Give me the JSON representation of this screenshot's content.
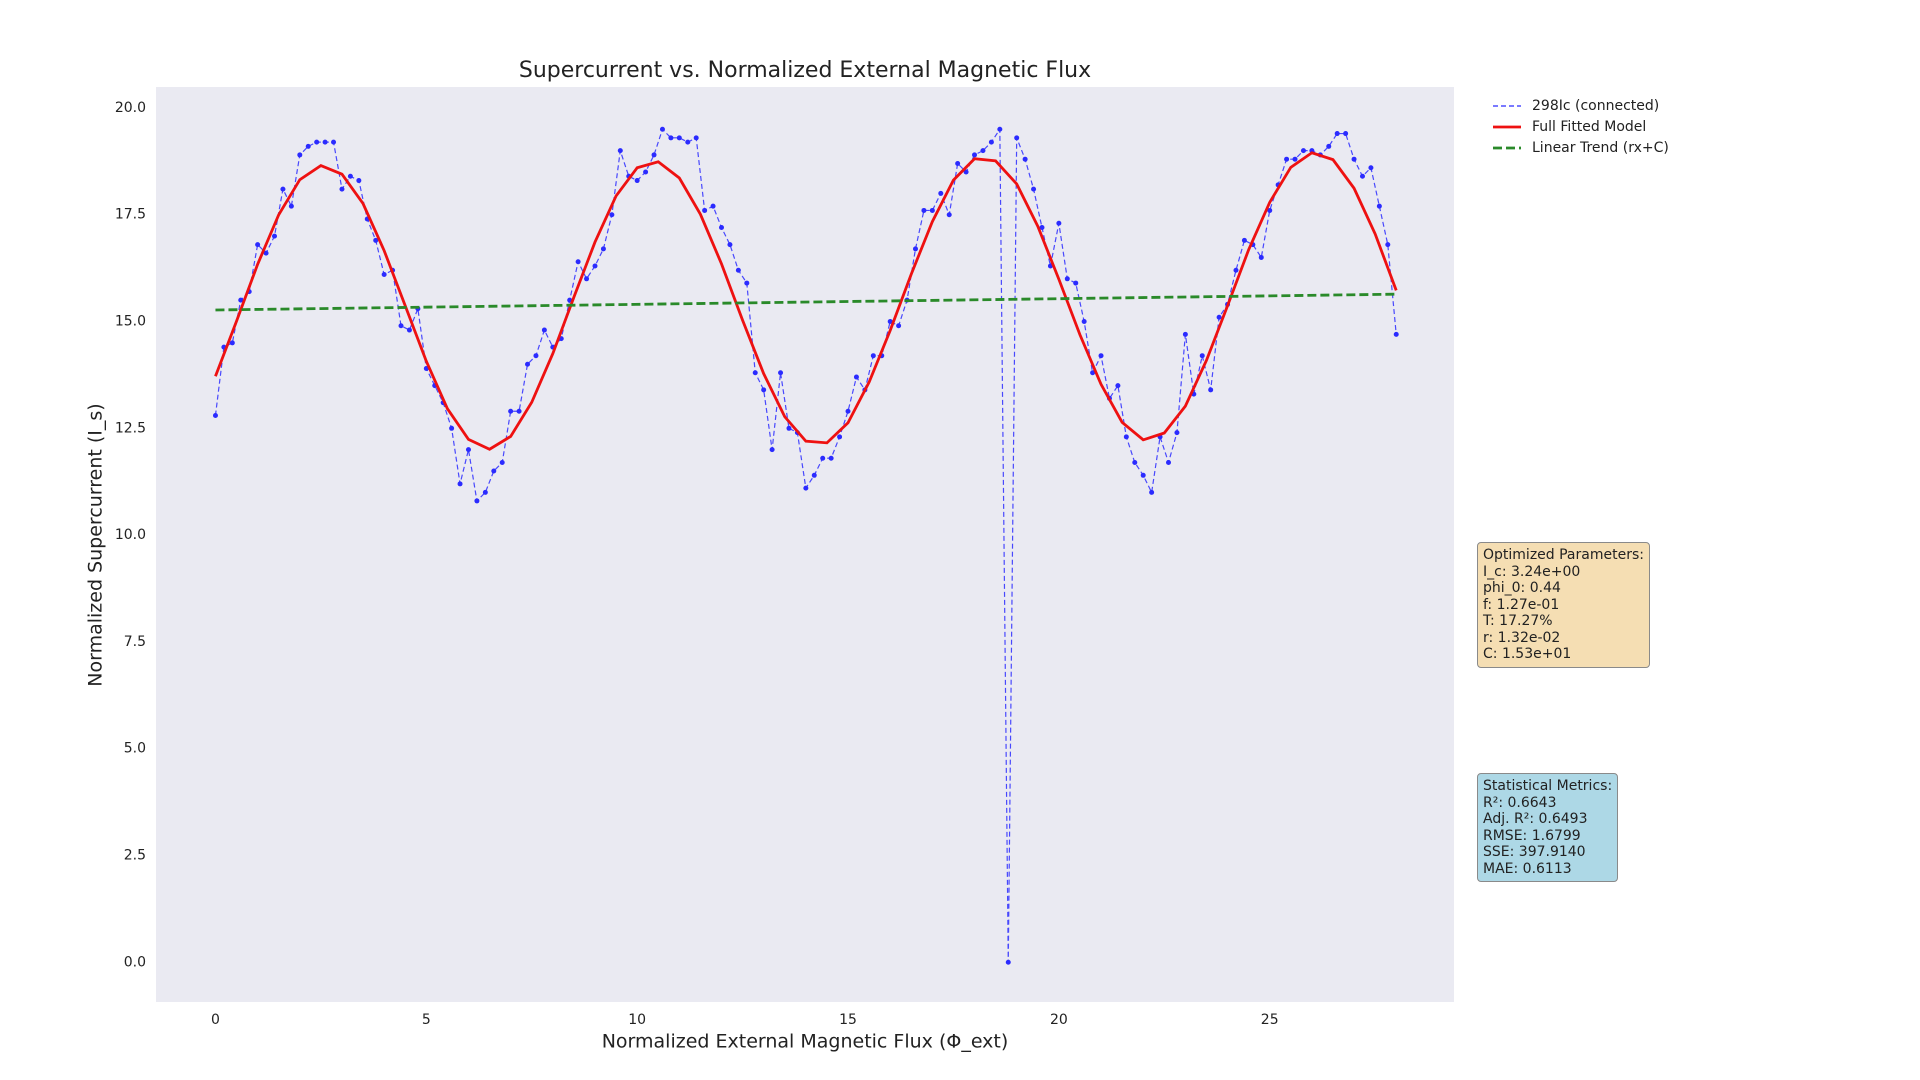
{
  "chart_data": {
    "type": "line",
    "title": "Supercurrent vs. Normalized External Magnetic Flux",
    "x_label": "Normalized External Magnetic Flux (Φ_ext)",
    "y_label": "Normalized Supercurrent (I_s)",
    "xlim": [
      -1.41,
      29.37
    ],
    "ylim": [
      -0.93,
      20.49
    ],
    "xticks": [
      0,
      5,
      10,
      15,
      20,
      25
    ],
    "yticks": [
      {
        "value": 0,
        "label": "0.0"
      },
      2.5,
      {
        "value": 5,
        "label": "5.0"
      },
      7.5,
      {
        "value": 10,
        "label": "10.0"
      },
      12.5,
      {
        "value": 15,
        "label": "15.0"
      },
      17.5,
      {
        "value": 20,
        "label": "20.0"
      }
    ],
    "grid": false,
    "legend": "upper right outside",
    "series": [
      {
        "name": "298Ic (connected)",
        "color": "#2b2bff",
        "style": "dashed-markers",
        "x": [
          0,
          0.2,
          0.4,
          0.6,
          0.8,
          1,
          1.2,
          1.4,
          1.6,
          1.8,
          2,
          2.2,
          2.4,
          2.6,
          2.8,
          3,
          3.2,
          3.4,
          3.6,
          3.8,
          4,
          4.2,
          4.4,
          4.6,
          4.8,
          5,
          5.2,
          5.4,
          5.6,
          5.8,
          6,
          6.2,
          6.4,
          6.6,
          6.8,
          7,
          7.2,
          7.4,
          7.6,
          7.8,
          8,
          8.2,
          8.4,
          8.6,
          8.8,
          9,
          9.2,
          9.4,
          9.6,
          9.8,
          10,
          10.2,
          10.4,
          10.6,
          10.8,
          11,
          11.2,
          11.4,
          11.6,
          11.8,
          12,
          12.2,
          12.4,
          12.6,
          12.8,
          13,
          13.2,
          13.4,
          13.6,
          13.8,
          14,
          14.2,
          14.4,
          14.6,
          14.8,
          15,
          15.2,
          15.4,
          15.6,
          15.8,
          16,
          16.2,
          16.4,
          16.6,
          16.8,
          17,
          17.2,
          17.4,
          17.6,
          17.8,
          18,
          18.2,
          18.4,
          18.6,
          18.8,
          19,
          19.2,
          19.4,
          19.6,
          19.8,
          20,
          20.2,
          20.4,
          20.6,
          20.8,
          21,
          21.2,
          21.4,
          21.6,
          21.8,
          22,
          22.2,
          22.4,
          22.6,
          22.8,
          23,
          23.2,
          23.4,
          23.6,
          23.8,
          24,
          24.2,
          24.4,
          24.6,
          24.8,
          25,
          25.2,
          25.4,
          25.6,
          25.8,
          26,
          26.2,
          26.4,
          26.6,
          26.8,
          27,
          27.2,
          27.4,
          27.6,
          27.8,
          28
        ],
        "values": [
          12.8,
          14.4,
          14.5,
          15.5,
          15.7,
          16.8,
          16.6,
          17.0,
          18.1,
          17.7,
          18.9,
          19.1,
          19.2,
          19.2,
          19.2,
          18.1,
          18.4,
          18.3,
          17.4,
          16.9,
          16.1,
          16.2,
          14.9,
          14.8,
          15.3,
          13.9,
          13.5,
          13.1,
          12.5,
          11.2,
          12.0,
          10.8,
          11.0,
          11.5,
          11.7,
          12.9,
          12.9,
          14.0,
          14.2,
          14.8,
          14.4,
          14.6,
          15.5,
          16.4,
          16.0,
          16.3,
          16.7,
          17.5,
          19.0,
          18.4,
          18.3,
          18.5,
          18.9,
          19.5,
          19.3,
          19.3,
          19.2,
          19.3,
          17.6,
          17.7,
          17.2,
          16.8,
          16.2,
          15.9,
          13.8,
          13.4,
          12.0,
          13.8,
          12.5,
          12.4,
          11.1,
          11.4,
          11.8,
          11.8,
          12.3,
          12.9,
          13.7,
          13.4,
          14.2,
          14.2,
          15.0,
          14.9,
          15.5,
          16.7,
          17.6,
          17.6,
          18.0,
          17.5,
          18.7,
          18.5,
          18.9,
          19.0,
          19.2,
          19.5,
          0.0,
          19.3,
          18.8,
          18.1,
          17.2,
          16.3,
          17.3,
          16.0,
          15.9,
          15.0,
          13.8,
          14.2,
          13.2,
          13.5,
          12.3,
          11.7,
          11.4,
          11.0,
          12.3,
          11.7,
          12.4,
          14.7,
          13.3,
          14.2,
          13.4,
          15.1,
          15.4,
          16.2,
          16.9,
          16.8,
          16.5,
          17.6,
          18.2,
          18.8,
          18.8,
          19.0,
          19.0,
          18.9,
          19.1,
          19.4,
          19.4,
          18.8,
          18.4,
          18.6,
          17.7,
          16.8,
          14.7
        ]
      },
      {
        "name": "Full Fitted Model",
        "color": "#ee1111",
        "style": "solid",
        "x": [
          0,
          0.5,
          1,
          1.5,
          2,
          2.5,
          3,
          3.5,
          4,
          4.5,
          5,
          5.5,
          6,
          6.5,
          7,
          7.5,
          8,
          8.5,
          9,
          9.5,
          10,
          10.5,
          11,
          11.5,
          12,
          12.5,
          13,
          13.5,
          14,
          14.5,
          15,
          15.5,
          16,
          16.5,
          17,
          17.5,
          18,
          18.5,
          19,
          19.5,
          20,
          20.5,
          21,
          21.5,
          22,
          22.5,
          23,
          23.5,
          24,
          24.5,
          25,
          25.5,
          26,
          26.5,
          27,
          27.5,
          28
        ],
        "values": [
          13.72,
          15.01,
          16.34,
          17.5,
          18.32,
          18.65,
          18.45,
          17.76,
          16.66,
          15.37,
          14.07,
          12.96,
          12.24,
          12.01,
          12.31,
          13.11,
          14.25,
          15.57,
          16.86,
          17.94,
          18.6,
          18.74,
          18.36,
          17.51,
          16.35,
          15.03,
          13.78,
          12.77,
          12.2,
          12.16,
          12.63,
          13.58,
          14.79,
          16.11,
          17.34,
          18.31,
          18.81,
          18.76,
          18.22,
          17.23,
          15.99,
          14.69,
          13.53,
          12.64,
          12.23,
          12.39,
          13.02,
          14.09,
          15.37,
          16.68,
          17.79,
          18.61,
          18.95,
          18.79,
          18.12,
          17.05,
          15.73
        ]
      },
      {
        "name": "Linear Trend (rx+C)",
        "color": "#2a8a2a",
        "style": "dashed",
        "x": [
          0,
          28
        ],
        "values": [
          15.27,
          15.64
        ]
      }
    ],
    "annotations": [
      {
        "title": "Optimized Parameters:",
        "lines": [
          "I_c: 3.24e+00",
          "phi_0: 0.44",
          "f: 1.27e-01",
          "T: 17.27%",
          "r: 1.32e-02",
          "C: 1.53e+01"
        ],
        "color": "#f5deb3"
      },
      {
        "title": "Statistical Metrics:",
        "lines": [
          "R²: 0.6643",
          "Adj. R²: 0.6493",
          "RMSE: 1.6799",
          "SSE: 397.9140",
          "MAE: 0.6113"
        ],
        "color": "#add8e6"
      }
    ]
  }
}
